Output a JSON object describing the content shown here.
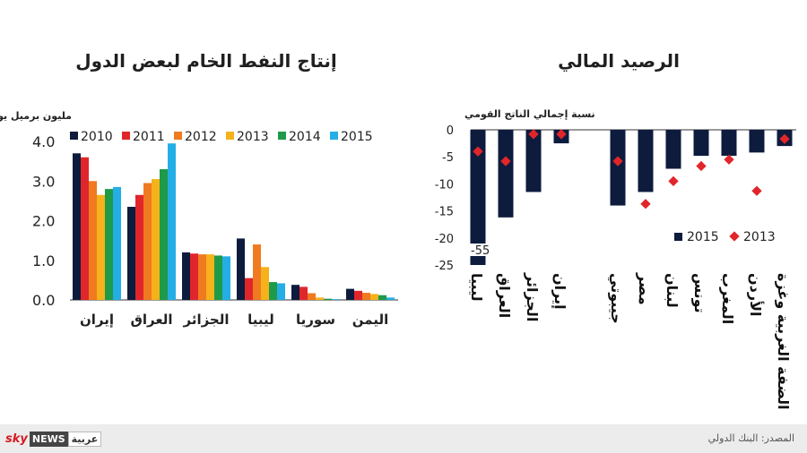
{
  "left_title": "إنتاج النفط الخام لبعض الدول",
  "right_title": "الرصيد المالي",
  "chart_data": [
    {
      "type": "bar",
      "ylabel": "مليون برميل يوميا",
      "ylim": [
        0,
        4.0
      ],
      "yticks": [
        "4.0",
        "3.0",
        "2.0",
        "1.0",
        "0.0"
      ],
      "grid": false,
      "legend_position": "top",
      "categories": [
        "إيران",
        "العراق",
        "الجزائر",
        "ليبيا",
        "سوريا",
        "اليمن"
      ],
      "series": [
        {
          "name": "2010",
          "color": "#0d1b3d",
          "values": [
            3.7,
            2.35,
            1.2,
            1.55,
            0.38,
            0.28
          ]
        },
        {
          "name": "2011",
          "color": "#e0262b",
          "values": [
            3.6,
            2.65,
            1.17,
            0.55,
            0.33,
            0.23
          ]
        },
        {
          "name": "2012",
          "color": "#f07a20",
          "values": [
            3.0,
            2.95,
            1.15,
            1.4,
            0.17,
            0.18
          ]
        },
        {
          "name": "2013",
          "color": "#f6b21b",
          "values": [
            2.65,
            3.05,
            1.15,
            0.83,
            0.06,
            0.15
          ]
        },
        {
          "name": "2014",
          "color": "#1e9a48",
          "values": [
            2.8,
            3.3,
            1.12,
            0.45,
            0.03,
            0.12
          ]
        },
        {
          "name": "2015",
          "color": "#25aee6",
          "values": [
            2.85,
            3.95,
            1.1,
            0.42,
            0.02,
            0.06
          ]
        }
      ]
    },
    {
      "type": "bar",
      "ylabel": "نسبة إجمالي الناتج القومي",
      "ylim": [
        -25,
        0
      ],
      "yticks": [
        "0",
        "-5",
        "-10",
        "-15",
        "-20",
        "-25"
      ],
      "grid": false,
      "legend_position": "bottom-right",
      "categories": [
        "ليبيا",
        "العراق",
        "الجزائر",
        "إيران",
        "",
        "جيبوتي",
        "مصر",
        "لبنان",
        "تونس",
        "المغرب",
        "الأردن",
        "الضفة الغربية وغزة"
      ],
      "bar_series": {
        "name": "2015",
        "color": "#0d1b3d",
        "values": [
          -55,
          -16.2,
          -11.5,
          -2.5,
          null,
          -14,
          -11.5,
          -7.2,
          -4.8,
          -4.8,
          -4.2,
          -3
        ]
      },
      "marker_series": {
        "name": "2013",
        "color": "#e0262b",
        "values": [
          -4,
          -5.8,
          -0.8,
          -0.8,
          null,
          -5.8,
          -13.7,
          -9.5,
          -6.7,
          -5.5,
          -11.3,
          -1.7
        ]
      },
      "annotation": "-55"
    }
  ],
  "footer": {
    "source": "المصدر: البنك الدولي",
    "logo_sky": "sky",
    "logo_news": "NEWS",
    "logo_ar": "عربية"
  }
}
